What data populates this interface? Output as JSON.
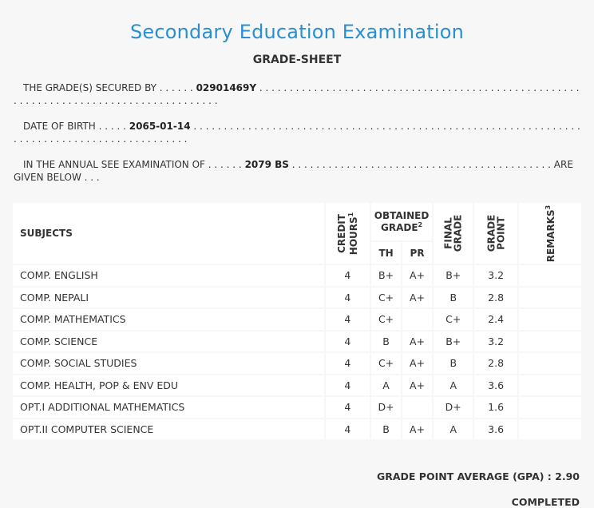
{
  "header": {
    "title": "Secondary Education Examination",
    "subtitle": "GRADE-SHEET"
  },
  "info": {
    "secured_by_label": "THE GRADE(S) SECURED BY",
    "symbol_no": "02901469Y",
    "dob_label": "DATE OF BIRTH",
    "dob": "2065-01-14",
    "exam_label": "IN THE ANNUAL SEE EXAMINATION OF",
    "exam_year": "2079 BS",
    "given_below": "ARE GIVEN BELOW . . ."
  },
  "table": {
    "headers": {
      "subjects": "SUBJECTS",
      "credit_hours_1": "CREDIT",
      "credit_hours_2": "HOURS",
      "credit_hours_sup": "1",
      "obtained_grade_1": "OBTAINED",
      "obtained_grade_2": "GRADE",
      "obtained_grade_sup": "2",
      "th": "TH",
      "pr": "PR",
      "final_grade_1": "FINAL",
      "final_grade_2": "GRADE",
      "grade_point_1": "GRADE",
      "grade_point_2": "POINT",
      "remarks": "REMARKS",
      "remarks_sup": "3"
    },
    "rows": [
      {
        "subject": "COMP. ENGLISH",
        "credit": "4",
        "th": "B+",
        "pr": "A+",
        "final": "B+",
        "gp": "3.2",
        "remarks": ""
      },
      {
        "subject": "COMP. NEPALI",
        "credit": "4",
        "th": "C+",
        "pr": "A+",
        "final": "B",
        "gp": "2.8",
        "remarks": ""
      },
      {
        "subject": "COMP. MATHEMATICS",
        "credit": "4",
        "th": "C+",
        "pr": "",
        "final": "C+",
        "gp": "2.4",
        "remarks": ""
      },
      {
        "subject": "COMP. SCIENCE",
        "credit": "4",
        "th": "B",
        "pr": "A+",
        "final": "B+",
        "gp": "3.2",
        "remarks": ""
      },
      {
        "subject": "COMP. SOCIAL STUDIES",
        "credit": "4",
        "th": "C+",
        "pr": "A+",
        "final": "B",
        "gp": "2.8",
        "remarks": ""
      },
      {
        "subject": "COMP. HEALTH, POP & ENV EDU",
        "credit": "4",
        "th": "A",
        "pr": "A+",
        "final": "A",
        "gp": "3.6",
        "remarks": ""
      },
      {
        "subject": "OPT.I ADDITIONAL MATHEMATICS",
        "credit": "4",
        "th": "D+",
        "pr": "",
        "final": "D+",
        "gp": "1.6",
        "remarks": ""
      },
      {
        "subject": "OPT.II COMPUTER SCIENCE",
        "credit": "4",
        "th": "B",
        "pr": "A+",
        "final": "A",
        "gp": "3.6",
        "remarks": ""
      }
    ]
  },
  "summary": {
    "gpa": "GRADE POINT AVERAGE (GPA) : 2.90",
    "status": "COMPLETED"
  },
  "colors": {
    "title": "#2a8fd0",
    "background": "#f7f7f7",
    "cell": "#ffffff"
  }
}
